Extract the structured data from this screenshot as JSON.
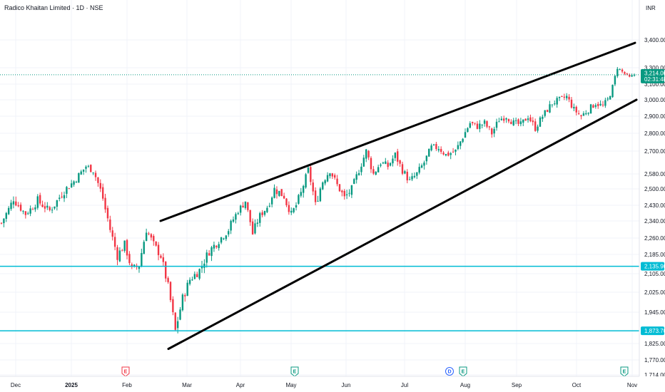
{
  "header": {
    "symbol_title": "Radico Khaitan Limited · 1D · NSE",
    "currency": "INR"
  },
  "price_tags": {
    "last_price": "3,214.00",
    "countdown": "02:31:48",
    "support_1": "2,135.90",
    "support_2": "1,873.70"
  },
  "events": [
    "E",
    "E",
    "D",
    "E",
    "E"
  ],
  "colors": {
    "up": "#089981",
    "down": "#f23645",
    "hline": "#00bcd4",
    "channel": "#000000",
    "last_price": "#089981",
    "earnings": "#089981",
    "earnings_neg": "#f23645",
    "dividend": "#2962ff"
  },
  "chart_data": {
    "type": "candlestick",
    "title": "Radico Khaitan Limited · 1D · NSE",
    "x_tick_labels": [
      "Dec",
      "2025",
      "Feb",
      "Mar",
      "Apr",
      "May",
      "Jun",
      "Jul",
      "Aug",
      "Sep",
      "Oct",
      "Nov"
    ],
    "y_tick_labels": [
      "3,400.00",
      "3,300.00",
      "3,100.00",
      "3,000.00",
      "2,900.00",
      "2,800.00",
      "2,700.00",
      "2,580.00",
      "2,500.00",
      "2,430.00",
      "2,340.00",
      "2,260.00",
      "2,185.00",
      "2,105.00",
      "2,025.00",
      "1,945.00",
      "1,825.00",
      "1,770.00",
      "1,714.00"
    ],
    "ylim": [
      1714,
      3400
    ],
    "close_anchors": [
      [
        0,
        2330
      ],
      [
        5,
        2460
      ],
      [
        10,
        2380
      ],
      [
        15,
        2450
      ],
      [
        20,
        2400
      ],
      [
        25,
        2480
      ],
      [
        30,
        2540
      ],
      [
        35,
        2620
      ],
      [
        38,
        2600
      ],
      [
        42,
        2460
      ],
      [
        45,
        2300
      ],
      [
        48,
        2180
      ],
      [
        51,
        2230
      ],
      [
        54,
        2120
      ],
      [
        57,
        2140
      ],
      [
        60,
        2300
      ],
      [
        63,
        2230
      ],
      [
        66,
        2180
      ],
      [
        69,
        2050
      ],
      [
        72,
        1873
      ],
      [
        75,
        2000
      ],
      [
        78,
        2080
      ],
      [
        82,
        2120
      ],
      [
        86,
        2200
      ],
      [
        90,
        2250
      ],
      [
        94,
        2300
      ],
      [
        98,
        2400
      ],
      [
        101,
        2450
      ],
      [
        104,
        2280
      ],
      [
        107,
        2370
      ],
      [
        110,
        2420
      ],
      [
        113,
        2500
      ],
      [
        117,
        2470
      ],
      [
        120,
        2380
      ],
      [
        124,
        2480
      ],
      [
        127,
        2600
      ],
      [
        130,
        2430
      ],
      [
        133,
        2540
      ],
      [
        136,
        2600
      ],
      [
        139,
        2520
      ],
      [
        142,
        2460
      ],
      [
        145,
        2500
      ],
      [
        148,
        2600
      ],
      [
        151,
        2700
      ],
      [
        154,
        2580
      ],
      [
        157,
        2640
      ],
      [
        160,
        2620
      ],
      [
        163,
        2680
      ],
      [
        166,
        2600
      ],
      [
        169,
        2540
      ],
      [
        172,
        2580
      ],
      [
        175,
        2640
      ],
      [
        178,
        2720
      ],
      [
        181,
        2720
      ],
      [
        184,
        2680
      ],
      [
        188,
        2700
      ],
      [
        191,
        2780
      ],
      [
        194,
        2860
      ],
      [
        197,
        2840
      ],
      [
        200,
        2860
      ],
      [
        203,
        2800
      ],
      [
        206,
        2880
      ],
      [
        209,
        2900
      ],
      [
        212,
        2860
      ],
      [
        215,
        2850
      ],
      [
        218,
        2900
      ],
      [
        221,
        2830
      ],
      [
        224,
        2900
      ],
      [
        228,
        2980
      ],
      [
        231,
        3000
      ],
      [
        234,
        3020
      ],
      [
        237,
        2940
      ],
      [
        240,
        2900
      ],
      [
        243,
        2940
      ],
      [
        246,
        2980
      ],
      [
        249,
        2960
      ],
      [
        251,
        3000
      ],
      [
        253,
        3080
      ],
      [
        255,
        3300
      ],
      [
        257,
        3250
      ],
      [
        260,
        3180
      ],
      [
        262,
        3214
      ]
    ],
    "horizontal_levels": [
      2135.9,
      1873.7
    ],
    "trend_channel": {
      "upper": {
        "from": {
          "x": "Feb 2025",
          "y": 2340
        },
        "to": {
          "x": "Oct 2025",
          "y": 3410
        }
      },
      "lower": {
        "from": {
          "x": "Feb 2025",
          "y": 1840
        },
        "to": {
          "x": "Nov 2025",
          "y": 3000
        }
      }
    },
    "last": 3214.0,
    "grid": true
  }
}
